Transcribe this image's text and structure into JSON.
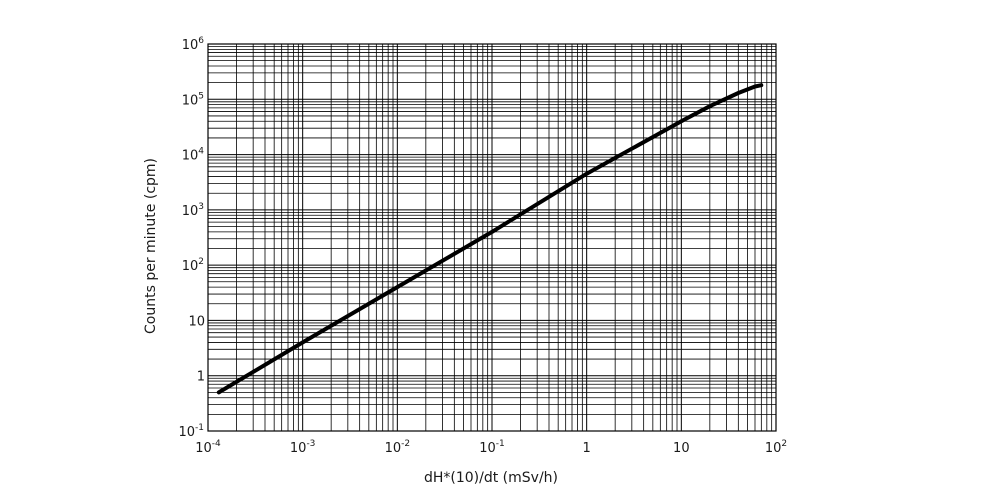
{
  "chart_data": {
    "type": "line",
    "title": "",
    "xlabel": "dH*(10)/dt (mSv/h)",
    "ylabel": "Counts per minute (cpm)",
    "x_scale": "log",
    "y_scale": "log",
    "xlim": [
      0.0001,
      100
    ],
    "ylim": [
      0.1,
      1000000
    ],
    "grid": true,
    "x_tick_labels": [
      {
        "value": 0.0001,
        "base": "10",
        "exp": "-4"
      },
      {
        "value": 0.001,
        "base": "10",
        "exp": "-3"
      },
      {
        "value": 0.01,
        "base": "10",
        "exp": "-2"
      },
      {
        "value": 0.1,
        "base": "10",
        "exp": "-1"
      },
      {
        "value": 1,
        "base": "1",
        "exp": ""
      },
      {
        "value": 10,
        "base": "10",
        "exp": ""
      },
      {
        "value": 100,
        "base": "10",
        "exp": "2"
      }
    ],
    "y_tick_labels": [
      {
        "value": 0.1,
        "base": "10",
        "exp": "-1"
      },
      {
        "value": 1,
        "base": "1",
        "exp": ""
      },
      {
        "value": 10,
        "base": "10",
        "exp": ""
      },
      {
        "value": 100,
        "base": "10",
        "exp": "2"
      },
      {
        "value": 1000,
        "base": "10",
        "exp": "3"
      },
      {
        "value": 10000,
        "base": "10",
        "exp": "4"
      },
      {
        "value": 100000,
        "base": "10",
        "exp": "5"
      },
      {
        "value": 1000000,
        "base": "10",
        "exp": "6"
      }
    ],
    "series": [
      {
        "color": "#000000",
        "x": [
          0.00013,
          0.001,
          0.01,
          0.1,
          1,
          10,
          20,
          40,
          60,
          70
        ],
        "y": [
          0.5,
          4,
          40,
          400,
          4500,
          40000,
          75000,
          130000,
          170000,
          180000
        ]
      }
    ]
  }
}
